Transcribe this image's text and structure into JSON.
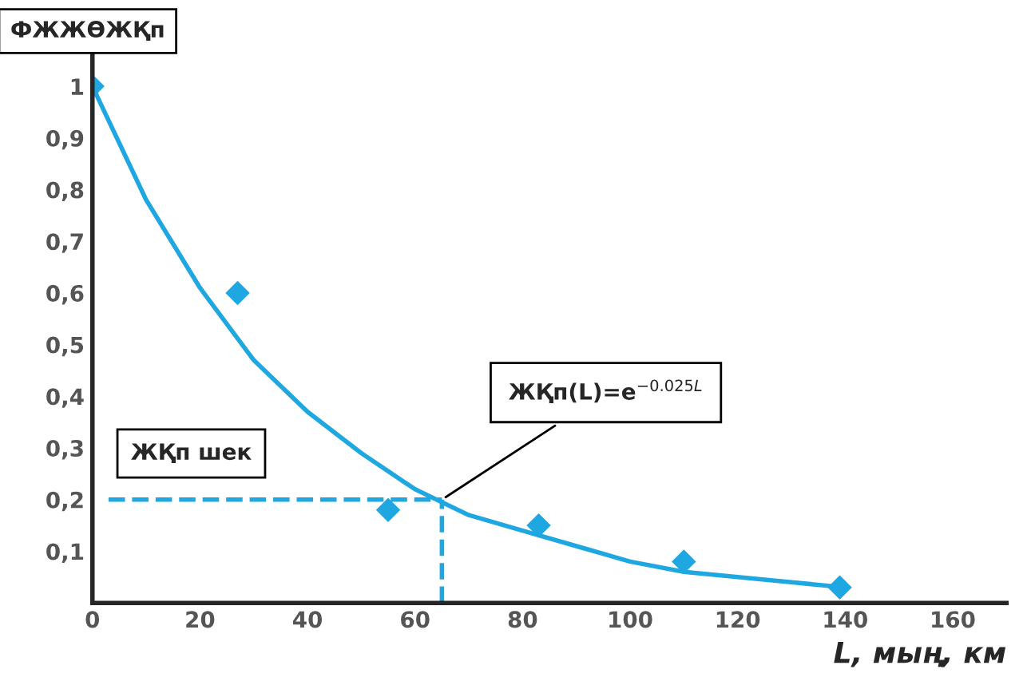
{
  "chart_data": {
    "type": "scatter",
    "ylabel": "ФЖЖӨЖҚп",
    "xlabel": "L, мың, км",
    "xlim": [
      0,
      170
    ],
    "xticks": [
      0,
      20,
      40,
      60,
      80,
      100,
      120,
      140,
      160
    ],
    "ylim": [
      0,
      1.1
    ],
    "yticks": [
      {
        "value": 0.1,
        "label": "0,1"
      },
      {
        "value": 0.2,
        "label": "0,2"
      },
      {
        "value": 0.3,
        "label": "0,3"
      },
      {
        "value": 0.4,
        "label": "0,4"
      },
      {
        "value": 0.5,
        "label": "0,5"
      },
      {
        "value": 0.6,
        "label": "0,6"
      },
      {
        "value": 0.7,
        "label": "0,7"
      },
      {
        "value": 0.8,
        "label": "0,8"
      },
      {
        "value": 0.9,
        "label": "0,9"
      },
      {
        "value": 1,
        "label": "1"
      }
    ],
    "grid": false,
    "legend": false,
    "series": [
      {
        "type": "line",
        "color": "#1ea7e1",
        "marker": "none",
        "line_style": "solid",
        "x": [
          0,
          10,
          20,
          30,
          40,
          50,
          60,
          70,
          80,
          90,
          100,
          110,
          120,
          130,
          140
        ],
        "values": [
          1,
          0.78,
          0.61,
          0.47,
          0.37,
          0.29,
          0.22,
          0.17,
          0.14,
          0.11,
          0.08,
          0.06,
          0.05,
          0.04,
          0.03
        ]
      },
      {
        "color": "#1ea7e1",
        "marker": "diamond",
        "x": [
          0,
          27,
          55,
          83,
          110,
          139
        ],
        "values": [
          1,
          0.6,
          0.18,
          0.15,
          0.08,
          0.03
        ]
      },
      {
        "type": "line",
        "color": "#1ea7e1",
        "marker": "none",
        "line_style": "dashed",
        "x": [
          3,
          65
        ],
        "values": [
          0.2,
          0.2
        ]
      },
      {
        "type": "line",
        "color": "#1ea7e1",
        "marker": "none",
        "line_style": "dashed",
        "x": [
          65,
          65
        ],
        "values": [
          0,
          0.2
        ]
      }
    ],
    "annotations": [
      {
        "text": "ЖҚп(L)=e$^{−0.025L}$",
        "x": 65,
        "y": 0.2
      },
      {
        "text": "ЖҚп шек",
        "x": 3,
        "y": 0.2
      }
    ]
  }
}
